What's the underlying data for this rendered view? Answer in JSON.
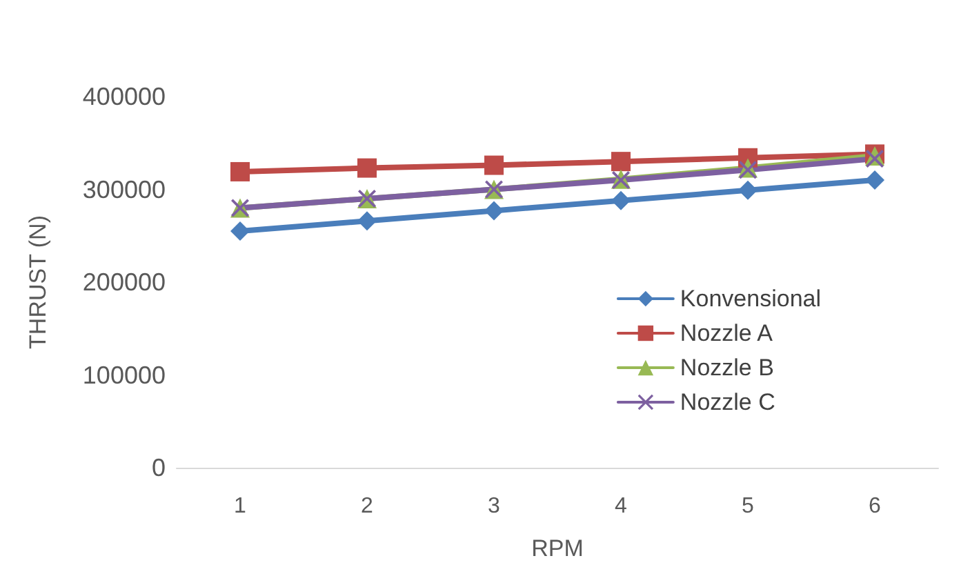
{
  "chart_data": {
    "type": "line",
    "xlabel": "RPM",
    "ylabel": "THRUST (N)",
    "categories": [
      "1",
      "2",
      "3",
      "4",
      "5",
      "6"
    ],
    "ylim": [
      0,
      400000
    ],
    "yticks": [
      0,
      100000,
      200000,
      300000,
      400000
    ],
    "grid": false,
    "legend": "right",
    "line_style": "solid",
    "series": [
      {
        "name": "Konvensional",
        "color": "#4a7ebb",
        "marker": "diamond",
        "values": [
          255000,
          266000,
          277000,
          288000,
          299000,
          310000
        ]
      },
      {
        "name": "Nozzle A",
        "color": "#be4b48",
        "marker": "square",
        "values": [
          319000,
          323000,
          326000,
          330000,
          334000,
          338000
        ]
      },
      {
        "name": "Nozzle B",
        "color": "#98b954",
        "marker": "triangle",
        "values": [
          280000,
          290000,
          300000,
          311000,
          323000,
          336000
        ]
      },
      {
        "name": "Nozzle C",
        "color": "#7d60a0",
        "marker": "cross",
        "values": [
          280000,
          290000,
          300000,
          310000,
          321000,
          333000
        ]
      }
    ]
  }
}
